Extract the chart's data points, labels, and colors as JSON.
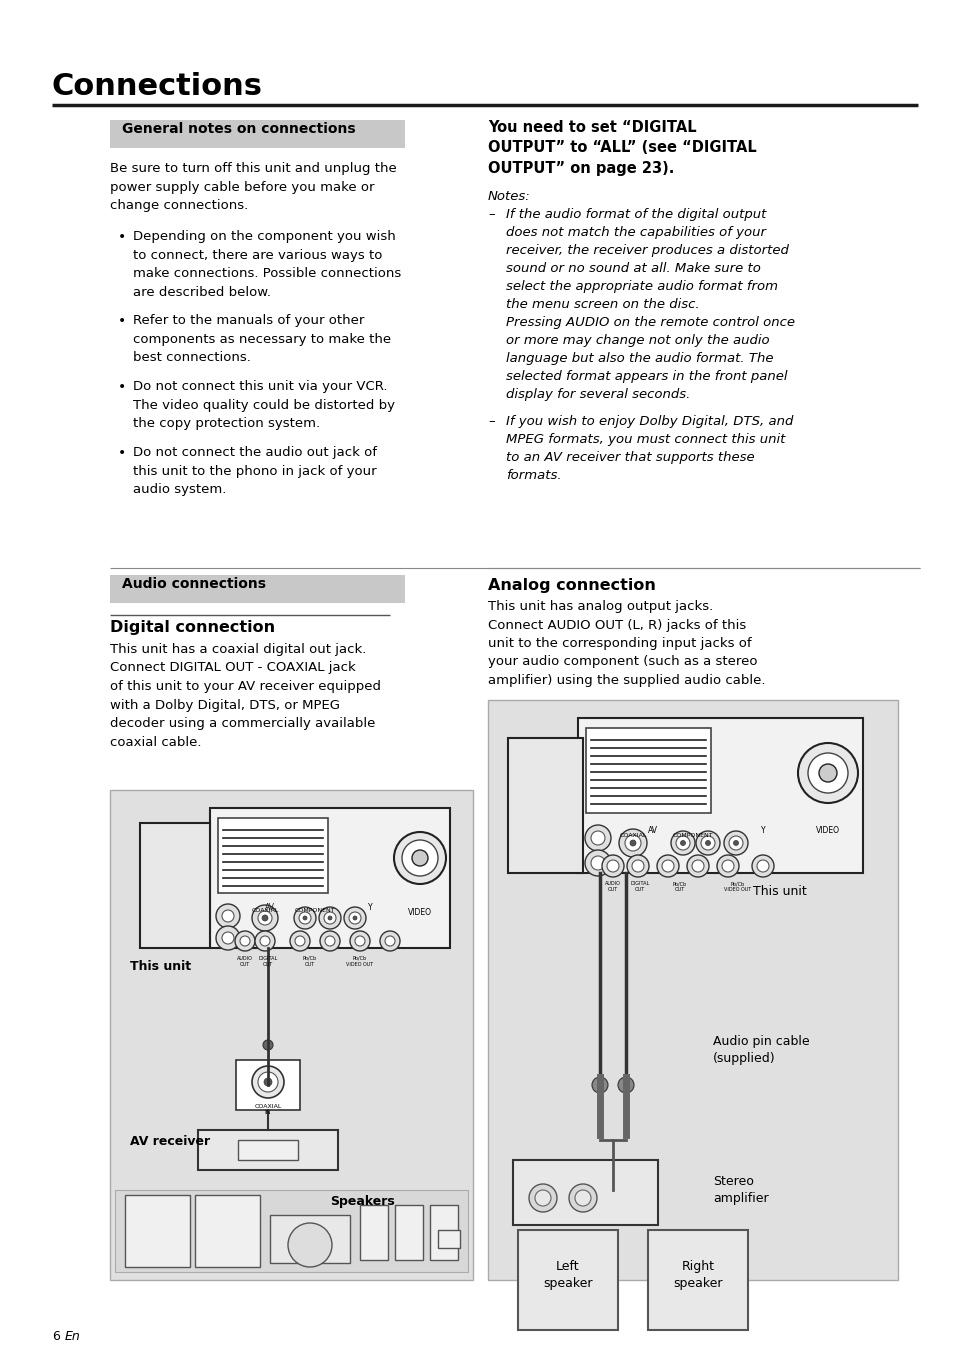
{
  "page_title": "Connections",
  "bg_color": "#ffffff",
  "section_bg": "#c8c8c8",
  "general_notes_header": "General notes on connections",
  "general_notes_intro": "Be sure to turn off this unit and unplug the\npower supply cable before you make or\nchange connections.",
  "general_notes_bullets": [
    "Depending on the component you wish\nto connect, there are various ways to\nmake connections. Possible connections\nare described below.",
    "Refer to the manuals of your other\ncomponents as necessary to make the\nbest connections.",
    "Do not connect this unit via your VCR.\nThe video quality could be distorted by\nthe copy protection system.",
    "Do not connect the audio out jack of\nthis unit to the phono in jack of your\naudio system."
  ],
  "digital_output_heading": "You need to set “DIGITAL\nOUTPUT” to “ALL” (see “DIGITAL\nOUTPUT” on page 23).",
  "notes_label": "Notes:",
  "note1_dash": "If the audio format of the digital output\ndoes not match the capabilities of your\nreceiver, the receiver produces a distorted\nsound or no sound at all. Make sure to\nselect the appropriate audio format from\nthe menu screen on the disc.\nPressing AUDIO on the remote control once\nor more may change not only the audio\nlanguage but also the audio format. The\nselected format appears in the front panel\ndisplay for several seconds.",
  "note2_dash": "If you wish to enjoy Dolby Digital, DTS, and\nMPEG formats, you must connect this unit\nto an AV receiver that supports these\nformats.",
  "audio_connections_header": "Audio connections",
  "digital_connection_heading": "Digital connection",
  "digital_connection_text": "This unit has a coaxial digital out jack.\nConnect DIGITAL OUT - COAXIAL jack\nof this unit to your AV receiver equipped\nwith a Dolby Digital, DTS, or MPEG\ndecoder using a commercially available\ncoaxial cable.",
  "analog_connection_heading": "Analog connection",
  "analog_connection_text": "This unit has analog output jacks.\nConnect AUDIO OUT (L, R) jacks of this\nunit to the corresponding input jacks of\nyour audio component (such as a stereo\namplifier) using the supplied audio cable.",
  "this_unit_label1": "This unit",
  "av_receiver_label": "AV receiver",
  "speakers_label": "Speakers",
  "this_unit_label2": "This unit",
  "audio_pin_cable_label": "Audio pin cable\n(supplied)",
  "stereo_amp_label": "Stereo\namplifier",
  "left_speaker_label": "Left\nspeaker",
  "right_speaker_label": "Right\nspeaker",
  "page_number": "6",
  "page_number_italic": "En"
}
